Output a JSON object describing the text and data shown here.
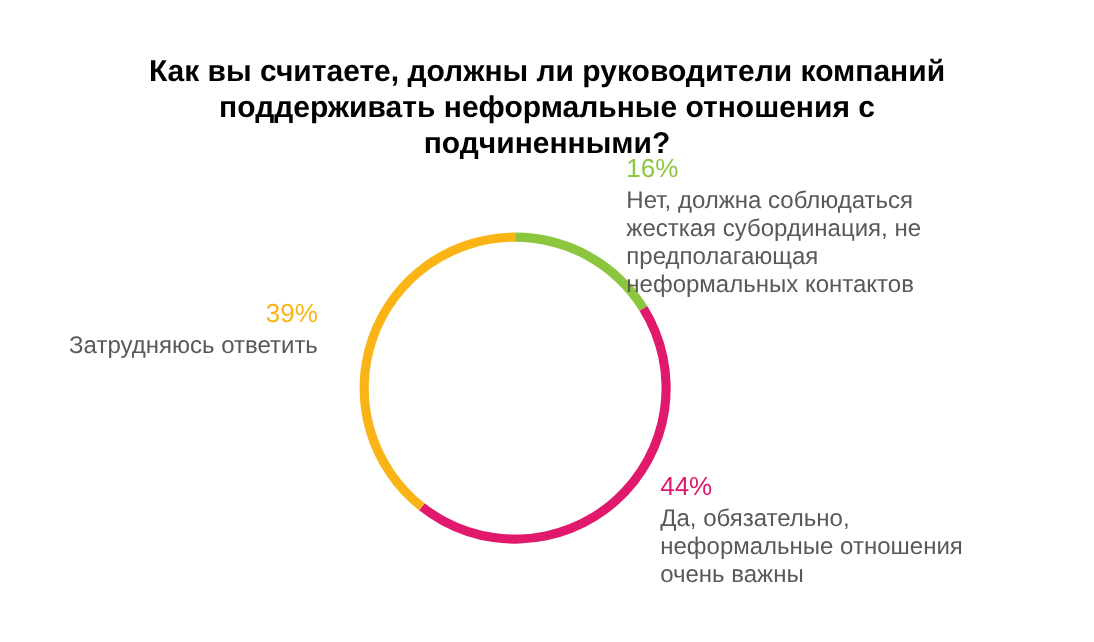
{
  "chart_data": {
    "type": "donut",
    "title": "Как вы считаете, должны ли руководители компаний поддерживать неформальные отношения с подчиненными?",
    "categories": [
      "Нет, должна соблюдаться жесткая субординация, не предполагающая неформальных контактов",
      "Да, обязательно, неформальные отношения очень важны",
      "Затрудняюсь ответить"
    ],
    "values": [
      16,
      44,
      39
    ],
    "value_labels": [
      "16%",
      "44%",
      "39%"
    ],
    "colors": [
      "#8cc63f",
      "#e0196c",
      "#fbb416"
    ],
    "legend": false
  }
}
